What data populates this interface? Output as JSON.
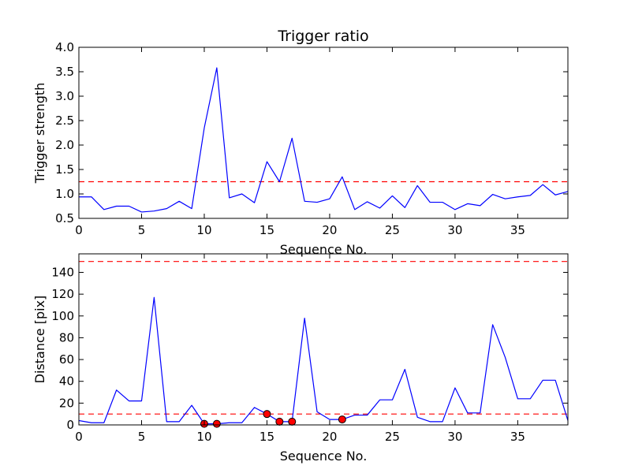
{
  "colors": {
    "line": "#0000ff",
    "threshold": "#ff0000",
    "marker_fill": "#ff0000",
    "marker_edge": "#000000",
    "axes": "#000000",
    "background": "#ffffff"
  },
  "chart_data": [
    {
      "type": "line",
      "title": "Trigger ratio",
      "xlabel": "Sequence No.",
      "ylabel": "Trigger strength",
      "xlim": [
        0,
        39
      ],
      "ylim": [
        0.5,
        4.0
      ],
      "xticks": [
        0,
        5,
        10,
        15,
        20,
        25,
        30,
        35
      ],
      "yticks": [
        0.5,
        1.0,
        1.5,
        2.0,
        2.5,
        3.0,
        3.5,
        4.0
      ],
      "ytick_labels": [
        "0.5",
        "1.0",
        "1.5",
        "2.0",
        "2.5",
        "3.0",
        "3.5",
        "4.0"
      ],
      "grid": false,
      "series": [
        {
          "x": [
            0,
            1,
            2,
            3,
            4,
            5,
            6,
            7,
            8,
            9,
            10,
            11,
            12,
            13,
            14,
            15,
            16,
            17,
            18,
            19,
            20,
            21,
            22,
            23,
            24,
            25,
            26,
            27,
            28,
            29,
            30,
            31,
            32,
            33,
            34,
            35,
            36,
            37,
            38,
            39
          ],
          "values": [
            0.94,
            0.94,
            0.68,
            0.75,
            0.75,
            0.63,
            0.65,
            0.7,
            0.85,
            0.7,
            2.35,
            3.58,
            0.92,
            1.0,
            0.82,
            1.66,
            1.25,
            2.14,
            0.85,
            0.83,
            0.9,
            1.35,
            0.68,
            0.84,
            0.71,
            0.96,
            0.72,
            1.17,
            0.83,
            0.83,
            0.68,
            0.8,
            0.76,
            0.99,
            0.9,
            0.94,
            0.97,
            1.19,
            0.98,
            1.05
          ]
        }
      ],
      "threshold_lines": [
        1.25
      ],
      "markers": []
    },
    {
      "type": "line",
      "title": "",
      "xlabel": "Sequence No.",
      "ylabel": "Distance [pix]",
      "xlim": [
        0,
        39
      ],
      "ylim": [
        0,
        157
      ],
      "xticks": [
        0,
        5,
        10,
        15,
        20,
        25,
        30,
        35
      ],
      "yticks": [
        0,
        20,
        40,
        60,
        80,
        100,
        120,
        140
      ],
      "ytick_labels": [
        "0",
        "20",
        "40",
        "60",
        "80",
        "100",
        "120",
        "140"
      ],
      "grid": false,
      "series": [
        {
          "x": [
            0,
            1,
            2,
            3,
            4,
            5,
            6,
            7,
            8,
            9,
            10,
            11,
            12,
            13,
            14,
            15,
            16,
            17,
            18,
            19,
            20,
            21,
            22,
            23,
            24,
            25,
            26,
            27,
            28,
            29,
            30,
            31,
            32,
            33,
            34,
            35,
            36,
            37,
            38,
            39
          ],
          "values": [
            4,
            2,
            2,
            32,
            22,
            22,
            117,
            3,
            3,
            18,
            1,
            1,
            2,
            2,
            16,
            10,
            3,
            3,
            98,
            12,
            5,
            5,
            9,
            9,
            23,
            23,
            51,
            7,
            3,
            3,
            34,
            11,
            11,
            92,
            62,
            24,
            24,
            41,
            41,
            4
          ]
        }
      ],
      "threshold_lines": [
        10,
        150
      ],
      "markers": [
        {
          "x": 10,
          "y": 1
        },
        {
          "x": 11,
          "y": 1
        },
        {
          "x": 15,
          "y": 10
        },
        {
          "x": 16,
          "y": 3
        },
        {
          "x": 17,
          "y": 3
        },
        {
          "x": 21,
          "y": 5
        }
      ]
    }
  ]
}
